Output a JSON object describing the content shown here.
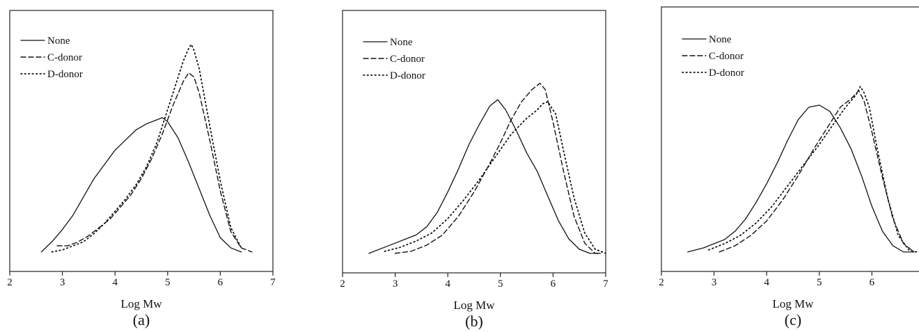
{
  "chart_data": [
    {
      "type": "line",
      "panel_label": "(a)",
      "xlabel": "Log Mw",
      "ylabel": "",
      "xlim": [
        2,
        7
      ],
      "ylim": [
        0,
        1.05
      ],
      "xticks": [
        "2",
        "3",
        "4",
        "5",
        "6",
        "7"
      ],
      "grid": false,
      "legend_position": "top-left",
      "series": [
        {
          "name": "None",
          "style": "solid",
          "x": [
            2.6,
            2.8,
            3.0,
            3.2,
            3.4,
            3.6,
            3.8,
            4.0,
            4.2,
            4.4,
            4.6,
            4.8,
            4.9,
            5.0,
            5.2,
            5.4,
            5.6,
            5.8,
            6.0,
            6.2,
            6.4
          ],
          "y": [
            0.0,
            0.05,
            0.11,
            0.18,
            0.27,
            0.36,
            0.43,
            0.5,
            0.55,
            0.6,
            0.63,
            0.65,
            0.66,
            0.64,
            0.56,
            0.44,
            0.31,
            0.18,
            0.07,
            0.02,
            0.0
          ]
        },
        {
          "name": "C-donor",
          "style": "dashed",
          "x": [
            2.9,
            3.1,
            3.3,
            3.5,
            3.7,
            3.9,
            4.1,
            4.3,
            4.5,
            4.7,
            4.9,
            5.1,
            5.3,
            5.4,
            5.5,
            5.6,
            5.8,
            6.0,
            6.2,
            6.4,
            6.6
          ],
          "y": [
            0.03,
            0.03,
            0.05,
            0.08,
            0.12,
            0.16,
            0.22,
            0.28,
            0.36,
            0.46,
            0.58,
            0.72,
            0.84,
            0.88,
            0.86,
            0.78,
            0.55,
            0.3,
            0.1,
            0.02,
            0.0
          ]
        },
        {
          "name": "D-donor",
          "style": "dotted",
          "x": [
            2.8,
            3.0,
            3.2,
            3.4,
            3.6,
            3.8,
            4.0,
            4.2,
            4.4,
            4.6,
            4.8,
            5.0,
            5.1,
            5.2,
            5.3,
            5.4,
            5.45,
            5.5,
            5.6,
            5.8,
            6.0,
            6.2,
            6.4
          ],
          "y": [
            0.0,
            0.01,
            0.03,
            0.05,
            0.09,
            0.14,
            0.2,
            0.26,
            0.33,
            0.42,
            0.54,
            0.7,
            0.78,
            0.86,
            0.94,
            1.0,
            1.02,
            0.99,
            0.9,
            0.62,
            0.35,
            0.12,
            0.02
          ]
        }
      ]
    },
    {
      "type": "line",
      "panel_label": "(b)",
      "xlabel": "Log Mw",
      "ylabel": "",
      "xlim": [
        2,
        7
      ],
      "ylim": [
        0,
        1.05
      ],
      "xticks": [
        "2",
        "3",
        "4",
        "5",
        "6",
        "7"
      ],
      "grid": false,
      "legend_position": "top-left",
      "series": [
        {
          "name": "None",
          "style": "solid",
          "x": [
            2.5,
            2.8,
            3.0,
            3.2,
            3.4,
            3.6,
            3.8,
            4.0,
            4.2,
            4.4,
            4.6,
            4.8,
            4.95,
            5.1,
            5.3,
            5.5,
            5.7,
            5.9,
            6.1,
            6.3,
            6.5,
            6.7,
            6.9
          ],
          "y": [
            0.0,
            0.03,
            0.05,
            0.07,
            0.09,
            0.13,
            0.2,
            0.3,
            0.41,
            0.53,
            0.63,
            0.72,
            0.75,
            0.7,
            0.6,
            0.49,
            0.4,
            0.28,
            0.16,
            0.07,
            0.02,
            0.0,
            0.0
          ]
        },
        {
          "name": "C-donor",
          "style": "dashed",
          "x": [
            3.0,
            3.3,
            3.6,
            3.9,
            4.2,
            4.5,
            4.8,
            5.0,
            5.2,
            5.4,
            5.6,
            5.75,
            5.85,
            6.0,
            6.2,
            6.4,
            6.6,
            6.8,
            6.9
          ],
          "y": [
            0.0,
            0.01,
            0.04,
            0.09,
            0.18,
            0.3,
            0.44,
            0.54,
            0.65,
            0.74,
            0.8,
            0.83,
            0.8,
            0.64,
            0.4,
            0.18,
            0.05,
            0.0,
            0.0
          ]
        },
        {
          "name": "D-donor",
          "style": "dotted",
          "x": [
            2.8,
            3.1,
            3.4,
            3.7,
            4.0,
            4.3,
            4.6,
            4.9,
            5.2,
            5.5,
            5.7,
            5.8,
            5.9,
            6.05,
            6.2,
            6.4,
            6.6,
            6.8,
            7.0
          ],
          "y": [
            0.01,
            0.03,
            0.06,
            0.1,
            0.17,
            0.26,
            0.36,
            0.47,
            0.58,
            0.66,
            0.7,
            0.73,
            0.74,
            0.68,
            0.5,
            0.27,
            0.1,
            0.02,
            0.0
          ]
        }
      ]
    },
    {
      "type": "line",
      "panel_label": "(c)",
      "xlabel": "Log Mw",
      "ylabel": "",
      "xlim": [
        2,
        7
      ],
      "ylim": [
        0,
        1.05
      ],
      "xticks": [
        "2",
        "3",
        "4",
        "5",
        "6"
      ],
      "grid": false,
      "legend_position": "top-left",
      "series": [
        {
          "name": "None",
          "style": "solid",
          "x": [
            2.5,
            2.8,
            3.0,
            3.2,
            3.4,
            3.6,
            3.8,
            4.0,
            4.2,
            4.4,
            4.6,
            4.8,
            5.0,
            5.2,
            5.4,
            5.6,
            5.8,
            6.0,
            6.2,
            6.4,
            6.6,
            6.8
          ],
          "y": [
            0.0,
            0.02,
            0.04,
            0.06,
            0.1,
            0.16,
            0.24,
            0.33,
            0.43,
            0.54,
            0.64,
            0.7,
            0.71,
            0.68,
            0.6,
            0.5,
            0.37,
            0.22,
            0.1,
            0.03,
            0.0,
            0.0
          ]
        },
        {
          "name": "C-donor",
          "style": "dashed",
          "x": [
            3.1,
            3.4,
            3.7,
            4.0,
            4.3,
            4.6,
            4.9,
            5.2,
            5.4,
            5.6,
            5.75,
            5.85,
            6.0,
            6.2,
            6.4,
            6.6,
            6.8
          ],
          "y": [
            0.0,
            0.03,
            0.08,
            0.15,
            0.25,
            0.37,
            0.5,
            0.62,
            0.7,
            0.74,
            0.78,
            0.73,
            0.58,
            0.36,
            0.16,
            0.04,
            0.0
          ]
        },
        {
          "name": "D-donor",
          "style": "dotted",
          "x": [
            2.9,
            3.2,
            3.5,
            3.8,
            4.1,
            4.4,
            4.7,
            5.0,
            5.3,
            5.5,
            5.7,
            5.78,
            5.85,
            5.95,
            6.1,
            6.3,
            6.5,
            6.7,
            6.85
          ],
          "y": [
            0.01,
            0.04,
            0.08,
            0.14,
            0.22,
            0.32,
            0.42,
            0.52,
            0.63,
            0.7,
            0.76,
            0.8,
            0.77,
            0.7,
            0.5,
            0.26,
            0.08,
            0.01,
            0.0
          ]
        }
      ]
    }
  ]
}
